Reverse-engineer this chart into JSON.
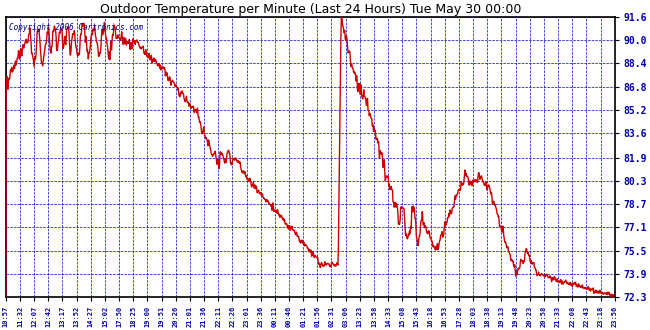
{
  "title": "Outdoor Temperature per Minute (Last 24 Hours) Tue May 30 00:00",
  "copyright": "Copyright 2006 Cartronics.com",
  "background_color": "#FFFFFF",
  "plot_bg_color": "#FFFFFF",
  "grid_color": "#0000BB",
  "line_color": "#CC0000",
  "line_width": 1.0,
  "yticks": [
    72.3,
    73.9,
    75.5,
    77.1,
    78.7,
    80.3,
    81.9,
    83.6,
    85.2,
    86.8,
    88.4,
    90.0,
    91.6
  ],
  "ylim": [
    72.3,
    91.6
  ],
  "xtick_labels": [
    "10:57",
    "11:32",
    "12:07",
    "12:42",
    "13:17",
    "13:52",
    "14:27",
    "15:02",
    "17:50",
    "18:25",
    "19:00",
    "19:51",
    "20:26",
    "21:01",
    "21:36",
    "22:11",
    "22:26",
    "23:01",
    "23:36",
    "00:11",
    "00:46",
    "01:21",
    "01:56",
    "02:31",
    "03:06",
    "13:23",
    "13:58",
    "14:33",
    "15:08",
    "15:43",
    "16:18",
    "16:53",
    "17:28",
    "18:03",
    "18:38",
    "19:13",
    "19:48",
    "20:23",
    "20:58",
    "21:33",
    "22:08",
    "22:43",
    "23:18",
    "23:56"
  ],
  "n_points": 1440
}
